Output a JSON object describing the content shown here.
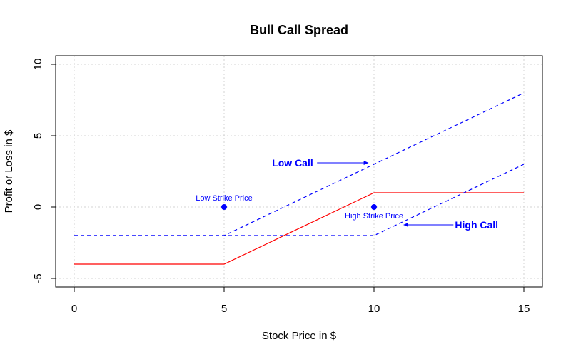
{
  "chart_data": {
    "type": "line",
    "title": "Bull Call Spread",
    "xlabel": "Stock Price in $",
    "ylabel": "Profit or Loss in $",
    "xlim": [
      0,
      15
    ],
    "ylim": [
      -5,
      10
    ],
    "xticks": [
      0,
      5,
      10,
      15
    ],
    "yticks": [
      -5,
      0,
      5,
      10
    ],
    "grid": true,
    "colors": {
      "net": "#ff0000",
      "legs": "#0000ff",
      "grid": "#d3d3d3"
    },
    "series": [
      {
        "style": "solid",
        "color": "#ff0000",
        "x": [
          0,
          5,
          10,
          15
        ],
        "y": [
          -4,
          -4,
          1,
          1
        ]
      },
      {
        "style": "dashed",
        "color": "#0000ff",
        "x": [
          0,
          5,
          15
        ],
        "y": [
          -2,
          -2,
          8
        ]
      },
      {
        "style": "dashed",
        "color": "#0000ff",
        "x": [
          0,
          10,
          15
        ],
        "y": [
          -2,
          -2,
          3
        ]
      }
    ],
    "points": [
      {
        "x": 5,
        "y": 0,
        "label": "Low Strike Price",
        "label_pos": "above"
      },
      {
        "x": 10,
        "y": 0,
        "label": "High Strike Price",
        "label_pos": "below"
      }
    ],
    "annotations": [
      {
        "text": "Low Call",
        "text_x": 6.6,
        "text_y": 3.1,
        "arrow_from_x": 8.1,
        "arrow_to_x": 9.8,
        "arrow_y": 3.1
      },
      {
        "text": "High Call",
        "text_x": 12.7,
        "text_y": -1.25,
        "arrow_from_x": 12.65,
        "arrow_to_x": 11.0,
        "arrow_y": -1.25
      }
    ]
  }
}
